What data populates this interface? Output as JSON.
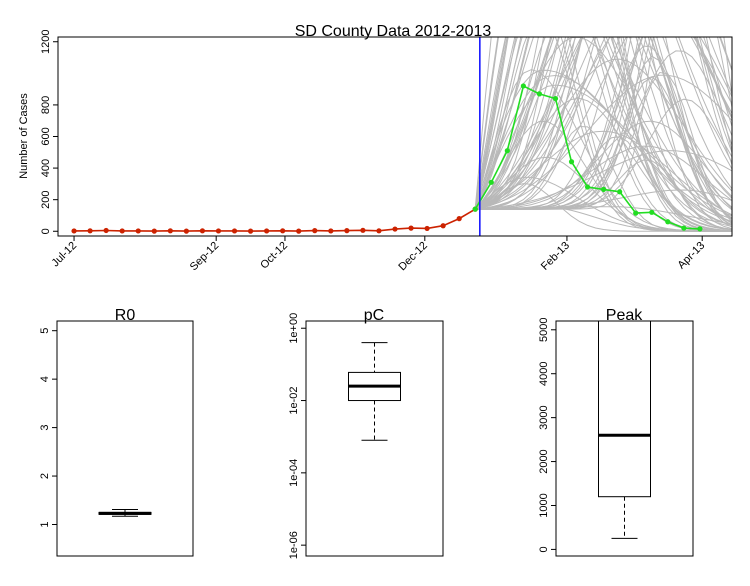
{
  "colors": {
    "red": "#cc2200",
    "green": "#22dd22",
    "gray": "#b8b8b8",
    "blue": "#1a1aff"
  },
  "chart_data": [
    {
      "type": "line",
      "title": "SD County Data 2012-2013",
      "xlabel": "",
      "ylabel": "Number of Cases",
      "x_ticks": [
        "Jul-12",
        "Sep-12",
        "Oct-12",
        "Dec-12",
        "Feb-13",
        "Apr-13"
      ],
      "x_tick_dates": [
        "2012-07-01",
        "2012-09-01",
        "2012-10-01",
        "2012-12-01",
        "2013-02-01",
        "2013-04-01"
      ],
      "xlim": [
        "2012-06-24",
        "2013-04-14"
      ],
      "y_ticks": [
        0,
        200,
        400,
        600,
        800,
        1200
      ],
      "ylim": [
        -30,
        1230
      ],
      "vline_date": "2012-12-25",
      "series": [
        {
          "role": "observed-before-forecast",
          "color": "red",
          "x": [
            "2012-07-01",
            "2012-07-08",
            "2012-07-15",
            "2012-07-22",
            "2012-07-29",
            "2012-08-05",
            "2012-08-12",
            "2012-08-19",
            "2012-08-26",
            "2012-09-02",
            "2012-09-09",
            "2012-09-16",
            "2012-09-23",
            "2012-09-30",
            "2012-10-07",
            "2012-10-14",
            "2012-10-21",
            "2012-10-28",
            "2012-11-04",
            "2012-11-11",
            "2012-11-18",
            "2012-11-25",
            "2012-12-02",
            "2012-12-09",
            "2012-12-16",
            "2012-12-23"
          ],
          "y": [
            2,
            3,
            5,
            2,
            2,
            1,
            3,
            1,
            3,
            2,
            2,
            1,
            2,
            3,
            1,
            4,
            2,
            4,
            6,
            3,
            14,
            20,
            18,
            35,
            80,
            140
          ]
        },
        {
          "role": "observed-after-forecast",
          "color": "green",
          "x": [
            "2012-12-23",
            "2012-12-30",
            "2013-01-06",
            "2013-01-13",
            "2013-01-20",
            "2013-01-27",
            "2013-02-03",
            "2013-02-10",
            "2013-02-17",
            "2013-02-24",
            "2013-03-03",
            "2013-03-10",
            "2013-03-17",
            "2013-03-24",
            "2013-03-31"
          ],
          "y": [
            140,
            310,
            510,
            920,
            870,
            840,
            440,
            280,
            265,
            250,
            115,
            120,
            60,
            20,
            15
          ]
        }
      ],
      "projections": {
        "color": "gray",
        "count": 80,
        "start_date": "2012-12-23",
        "peak_range": [
          130,
          2600
        ],
        "peak_week_range": [
          3,
          14
        ]
      }
    },
    {
      "type": "boxplot",
      "title": "R0",
      "y_ticks": [
        1,
        2,
        3,
        4,
        5
      ],
      "ylim": [
        0.35,
        5.2
      ],
      "min": 1.17,
      "q1": 1.21,
      "median": 1.23,
      "q3": 1.25,
      "max": 1.31
    },
    {
      "type": "boxplot",
      "title": "pC",
      "log_scale": true,
      "y_ticks": [
        "1e-06",
        "1e-04",
        "1e-02",
        "1e+00"
      ],
      "y_tick_exps": [
        -6,
        -4,
        -2,
        0
      ],
      "ylim_exp": [
        -6.3,
        0.2
      ],
      "min": 0.0008,
      "q1": 0.01,
      "median": 0.025,
      "q3": 0.06,
      "max": 0.4
    },
    {
      "type": "boxplot",
      "title": "Peak",
      "y_ticks": [
        0,
        1000,
        2000,
        3000,
        4000,
        5000
      ],
      "ylim": [
        -150,
        5200
      ],
      "min": 250,
      "q1": 1200,
      "median": 2600,
      "q3": 5200,
      "max": 5200
    }
  ]
}
